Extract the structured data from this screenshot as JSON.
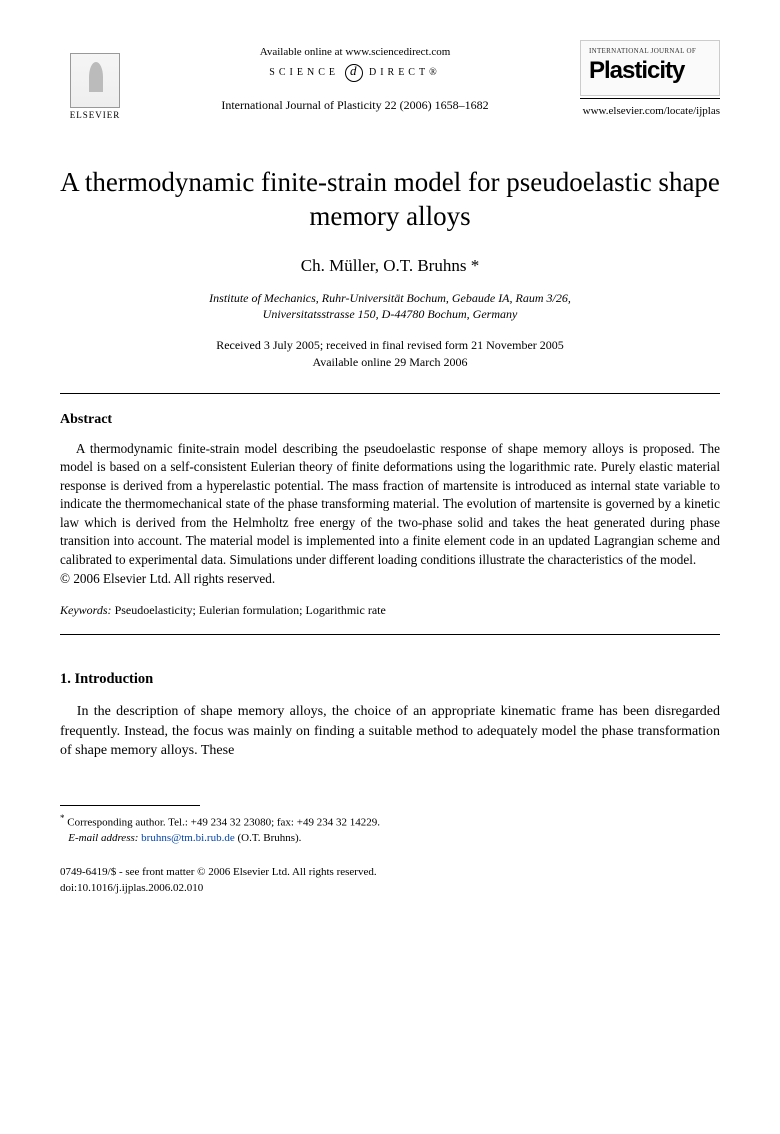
{
  "header": {
    "available_online": "Available online at www.sciencedirect.com",
    "sd_left": "SCIENCE",
    "sd_right": "DIRECT®",
    "journal_ref": "International Journal of Plasticity 22 (2006) 1658–1682",
    "publisher_name": "ELSEVIER",
    "plasticity_small": "INTERNATIONAL JOURNAL OF",
    "plasticity_big": "Plasticity",
    "journal_url": "www.elsevier.com/locate/ijplas"
  },
  "title": "A thermodynamic finite-strain model for pseudoelastic shape memory alloys",
  "authors": "Ch. Müller, O.T. Bruhns *",
  "affiliation_line1": "Institute of Mechanics, Ruhr-Universität Bochum, Gebaude IA, Raum 3/26,",
  "affiliation_line2": "Universitatsstrasse 150, D-44780 Bochum, Germany",
  "dates_line1": "Received 3 July 2005; received in final revised form 21 November 2005",
  "dates_line2": "Available online 29 March 2006",
  "abstract_heading": "Abstract",
  "abstract_body": "A thermodynamic finite-strain model describing the pseudoelastic response of shape memory alloys is proposed. The model is based on a self-consistent Eulerian theory of finite deformations using the logarithmic rate. Purely elastic material response is derived from a hyperelastic potential. The mass fraction of martensite is introduced as internal state variable to indicate the thermomechanical state of the phase transforming material. The evolution of martensite is governed by a kinetic law which is derived from the Helmholtz free energy of the two-phase solid and takes the heat generated during phase transition into account. The material model is implemented into a finite element code in an updated Lagrangian scheme and calibrated to experimental data. Simulations under different loading conditions illustrate the characteristics of the model.",
  "copyright": "© 2006 Elsevier Ltd. All rights reserved.",
  "keywords_label": "Keywords:",
  "keywords_text": " Pseudoelasticity; Eulerian formulation; Logarithmic rate",
  "section1_heading": "1. Introduction",
  "section1_body": "In the description of shape memory alloys, the choice of an appropriate kinematic frame has been disregarded frequently. Instead, the focus was mainly on finding a suitable method to adequately model the phase transformation of shape memory alloys. These",
  "footnote_corresponding": "Corresponding author. Tel.: +49 234 32 23080; fax: +49 234 32 14229.",
  "footnote_email_label": "E-mail address:",
  "footnote_email": "bruhns@tm.bi.rub.de",
  "footnote_email_paren": "(O.T. Bruhns).",
  "footer_line1": "0749-6419/$ - see front matter © 2006 Elsevier Ltd. All rights reserved.",
  "footer_line2": "doi:10.1016/j.ijplas.2006.02.010"
}
